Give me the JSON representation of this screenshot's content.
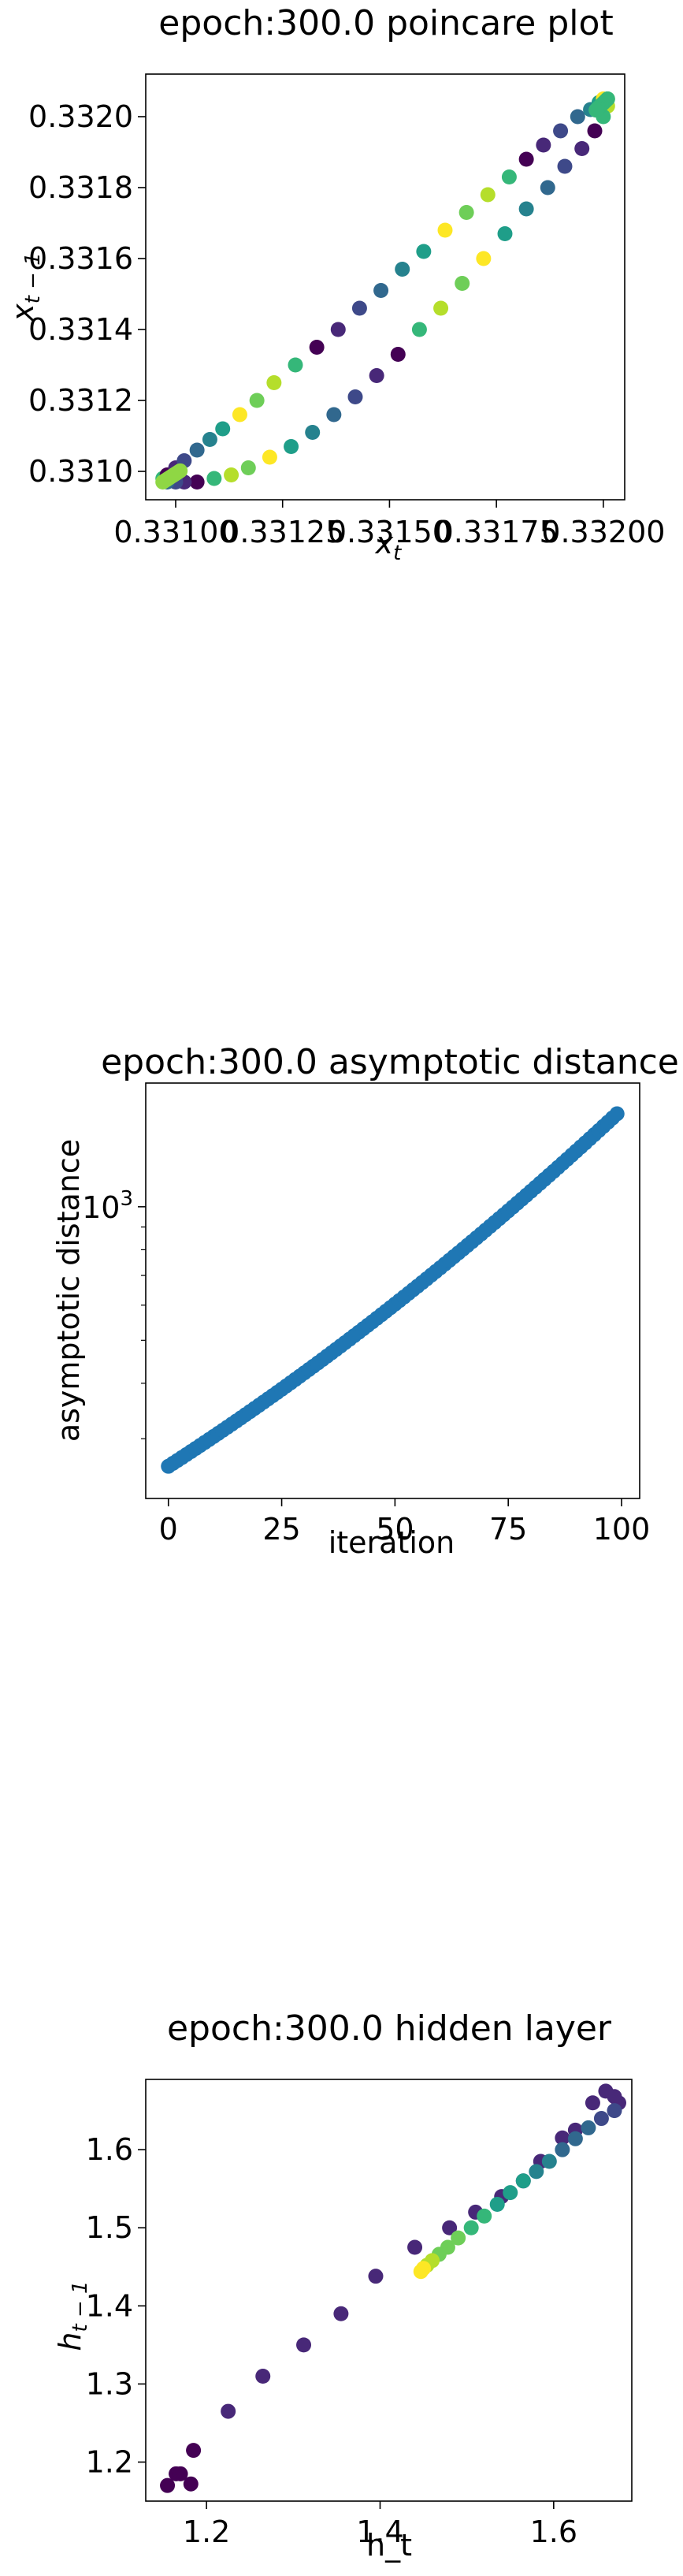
{
  "chart_data": [
    {
      "type": "scatter",
      "title": "epoch:300.0 poincare plot",
      "xlabel": "x",
      "xlabel_sub": "t",
      "ylabel": "x",
      "ylabel_sub": "t − 1",
      "xlim": [
        0.33093,
        0.33205
      ],
      "ylim": [
        0.33092,
        0.33212
      ],
      "xticks": [
        0.331,
        0.33125,
        0.3315,
        0.33175,
        0.332
      ],
      "xtick_labels": [
        "0.33100",
        "0.33125",
        "0.33150",
        "0.33175",
        "0.33200"
      ],
      "yticks": [
        0.331,
        0.3312,
        0.3314,
        0.3316,
        0.3318,
        0.332
      ],
      "ytick_labels": [
        "0.3310",
        "0.3312",
        "0.3314",
        "0.3316",
        "0.3318",
        "0.3320"
      ],
      "colormap": "viridis",
      "upper_branch": {
        "x": [
          0.33097,
          0.33098,
          0.331,
          0.33102,
          0.33105,
          0.33108,
          0.33111,
          0.33115,
          0.33119,
          0.33123,
          0.33128,
          0.33133,
          0.33138,
          0.33143,
          0.33148,
          0.33153,
          0.33158,
          0.33163,
          0.33168,
          0.33173,
          0.33178,
          0.33182,
          0.33186,
          0.3319,
          0.33194,
          0.33197,
          0.33199,
          0.332,
          0.33201
        ],
        "y": [
          0.33098,
          0.33099,
          0.33101,
          0.33103,
          0.33106,
          0.33109,
          0.33112,
          0.33116,
          0.3312,
          0.33125,
          0.3313,
          0.33135,
          0.3314,
          0.33146,
          0.33151,
          0.33157,
          0.33162,
          0.33168,
          0.33173,
          0.33178,
          0.33183,
          0.33188,
          0.33192,
          0.33196,
          0.332,
          0.33202,
          0.33204,
          0.33205,
          0.33205
        ]
      },
      "lower_branch": {
        "x": [
          0.33201,
          0.332,
          0.33198,
          0.33195,
          0.33191,
          0.33187,
          0.33182,
          0.33177,
          0.33172,
          0.33167,
          0.33162,
          0.33157,
          0.33152,
          0.33147,
          0.33142,
          0.33137,
          0.33132,
          0.33127,
          0.33122,
          0.33117,
          0.33113,
          0.33109,
          0.33105,
          0.33102,
          0.331,
          0.33098
        ],
        "y": [
          0.33203,
          0.332,
          0.33196,
          0.33191,
          0.33186,
          0.3318,
          0.33174,
          0.33167,
          0.3316,
          0.33153,
          0.33146,
          0.3314,
          0.33133,
          0.33127,
          0.33121,
          0.33116,
          0.33111,
          0.33107,
          0.33104,
          0.33101,
          0.33099,
          0.33098,
          0.33097,
          0.33097,
          0.33097,
          0.33097
        ]
      }
    },
    {
      "type": "scatter",
      "title": "epoch:300.0 asymptotic distance",
      "xlabel": "iteration",
      "ylabel": "asymptotic distance",
      "y_scale": "log",
      "xlim": [
        -5,
        104
      ],
      "ylim": [
        220,
        1900
      ],
      "xticks": [
        0,
        25,
        50,
        75,
        100
      ],
      "xtick_labels": [
        "0",
        "25",
        "50",
        "75",
        "100"
      ],
      "y_major_tick_value": 1000,
      "y_major_tick_base": "10",
      "y_major_tick_exp": "3",
      "y_minor_ticks": [
        300,
        400,
        500,
        600,
        700,
        800,
        900
      ],
      "color": "#1f77b4",
      "x_range": [
        0,
        99
      ],
      "y_start": 260,
      "y_end": 1620
    },
    {
      "type": "scatter",
      "title": "epoch:300.0 hidden layer",
      "xlabel": "h_t",
      "ylabel": "h",
      "ylabel_sub": "t − 1",
      "xlim": [
        1.13,
        1.69
      ],
      "ylim": [
        1.15,
        1.69
      ],
      "xticks": [
        1.2,
        1.4,
        1.6
      ],
      "xtick_labels": [
        "1.2",
        "1.4",
        "1.6"
      ],
      "yticks": [
        1.2,
        1.3,
        1.4,
        1.5,
        1.6
      ],
      "ytick_labels": [
        "1.2",
        "1.3",
        "1.4",
        "1.5",
        "1.6"
      ],
      "colormap": "viridis",
      "x": [
        1.155,
        1.165,
        1.17,
        1.182,
        1.185,
        1.225,
        1.265,
        1.312,
        1.355,
        1.395,
        1.44,
        1.48,
        1.51,
        1.54,
        1.565,
        1.585,
        1.61,
        1.625,
        1.645,
        1.66,
        1.67,
        1.675,
        1.67,
        1.655,
        1.64,
        1.625,
        1.61,
        1.595,
        1.58,
        1.565,
        1.55,
        1.535,
        1.52,
        1.505,
        1.49,
        1.478,
        1.468,
        1.46,
        1.454,
        1.45,
        1.447
      ],
      "y": [
        1.17,
        1.185,
        1.185,
        1.172,
        1.215,
        1.265,
        1.31,
        1.35,
        1.39,
        1.438,
        1.475,
        1.5,
        1.52,
        1.54,
        1.56,
        1.585,
        1.615,
        1.625,
        1.66,
        1.675,
        1.668,
        1.66,
        1.65,
        1.64,
        1.628,
        1.614,
        1.6,
        1.585,
        1.572,
        1.56,
        1.545,
        1.53,
        1.515,
        1.5,
        1.487,
        1.475,
        1.466,
        1.458,
        1.452,
        1.448,
        1.444
      ]
    }
  ]
}
